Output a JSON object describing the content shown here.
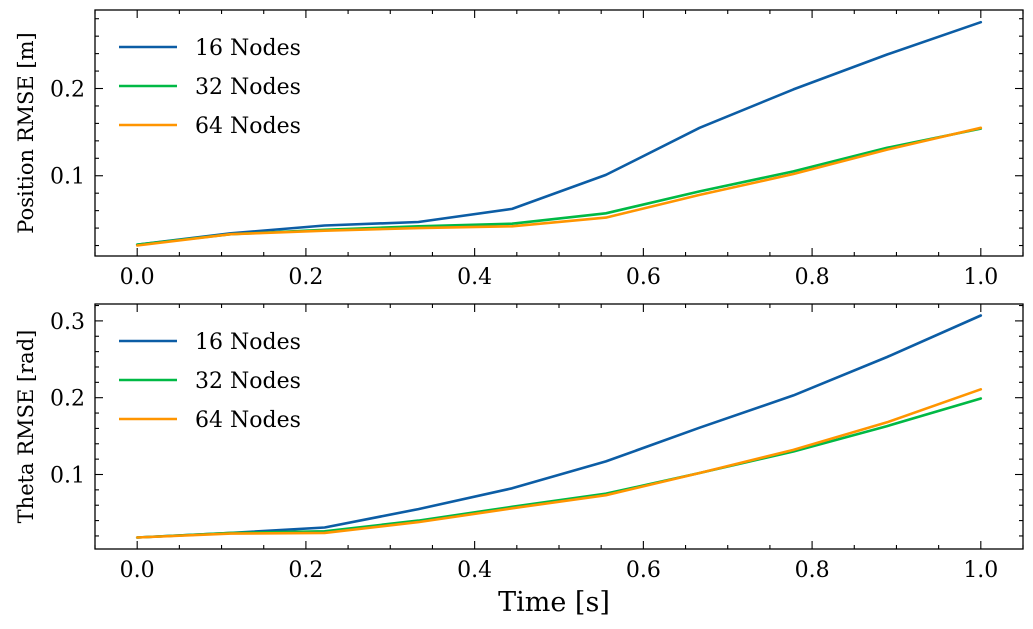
{
  "chart_data": [
    {
      "type": "line",
      "ylabel": "Position RMSE [m]",
      "xlabel": "",
      "xlim": [
        -0.05,
        1.05
      ],
      "ylim": [
        0.008,
        0.29
      ],
      "xticks": [
        0.0,
        0.2,
        0.4,
        0.6,
        0.8,
        1.0
      ],
      "xtick_labels": [
        "0.0",
        "0.2",
        "0.4",
        "0.6",
        "0.8",
        "1.0"
      ],
      "yticks": [
        0.1,
        0.2
      ],
      "ytick_labels": [
        "0.1",
        "0.2"
      ],
      "legend_position": "top-left",
      "x": [
        0.0,
        0.1111,
        0.2222,
        0.3333,
        0.4444,
        0.5556,
        0.6667,
        0.7778,
        0.8889,
        1.0
      ],
      "series": [
        {
          "name": "16 Nodes",
          "color": "#0C5DA5",
          "values": [
            0.021,
            0.034,
            0.043,
            0.047,
            0.062,
            0.101,
            0.155,
            0.199,
            0.239,
            0.276
          ]
        },
        {
          "name": "32 Nodes",
          "color": "#00B945",
          "values": [
            0.021,
            0.033,
            0.038,
            0.042,
            0.045,
            0.057,
            0.082,
            0.105,
            0.132,
            0.154
          ]
        },
        {
          "name": "64 Nodes",
          "color": "#FF9500",
          "values": [
            0.02,
            0.033,
            0.037,
            0.04,
            0.042,
            0.052,
            0.078,
            0.102,
            0.13,
            0.155
          ]
        }
      ]
    },
    {
      "type": "line",
      "ylabel": "Theta RMSE [rad]",
      "xlabel": "Time [s]",
      "xlim": [
        -0.05,
        1.05
      ],
      "ylim": [
        0.003,
        0.322
      ],
      "xticks": [
        0.0,
        0.2,
        0.4,
        0.6,
        0.8,
        1.0
      ],
      "xtick_labels": [
        "0.0",
        "0.2",
        "0.4",
        "0.6",
        "0.8",
        "1.0"
      ],
      "yticks": [
        0.1,
        0.2,
        0.3
      ],
      "ytick_labels": [
        "0.1",
        "0.2",
        "0.3"
      ],
      "legend_position": "top-left",
      "x": [
        0.0,
        0.1111,
        0.2222,
        0.3333,
        0.4444,
        0.5556,
        0.6667,
        0.7778,
        0.8889,
        1.0
      ],
      "series": [
        {
          "name": "16 Nodes",
          "color": "#0C5DA5",
          "values": [
            0.018,
            0.024,
            0.031,
            0.055,
            0.082,
            0.117,
            0.161,
            0.203,
            0.253,
            0.307
          ]
        },
        {
          "name": "32 Nodes",
          "color": "#00B945",
          "values": [
            0.018,
            0.024,
            0.026,
            0.04,
            0.058,
            0.075,
            0.102,
            0.13,
            0.163,
            0.199
          ]
        },
        {
          "name": "64 Nodes",
          "color": "#FF9500",
          "values": [
            0.018,
            0.023,
            0.024,
            0.038,
            0.056,
            0.073,
            0.102,
            0.132,
            0.168,
            0.211
          ]
        }
      ]
    }
  ]
}
